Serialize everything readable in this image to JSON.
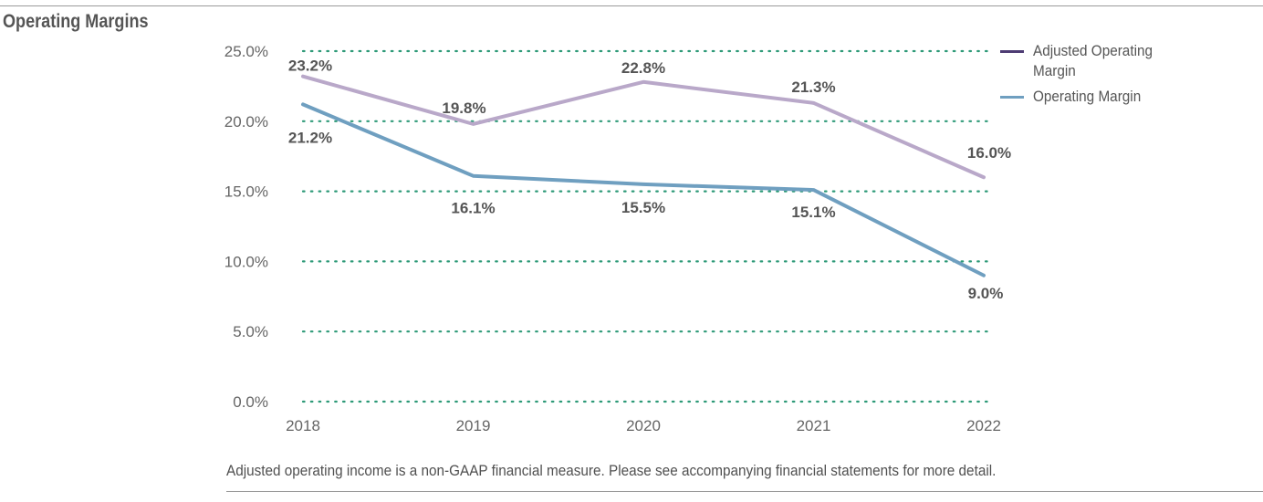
{
  "title": "Operating Margins",
  "footnote": "Adjusted operating income is a non-GAAP financial measure. Please see accompanying financial statements for more detail.",
  "colors": {
    "adjusted_line": "#b9a8c9",
    "adjusted_legend": "#4d3b73",
    "operating_line": "#6f9fc0",
    "grid": "#2e9a78",
    "label": "#555555",
    "axis_text": "#666666"
  },
  "chart_data": {
    "type": "line",
    "title": "Operating Margins",
    "categories": [
      "2018",
      "2019",
      "2020",
      "2021",
      "2022"
    ],
    "series": [
      {
        "name": "Adjusted Operating Margin",
        "values": [
          23.2,
          19.8,
          22.8,
          21.3,
          16.0
        ],
        "labels": [
          "23.2%",
          "19.8%",
          "22.8%",
          "21.3%",
          "16.0%"
        ]
      },
      {
        "name": "Operating Margin",
        "values": [
          21.2,
          16.1,
          15.5,
          15.1,
          9.0
        ],
        "labels": [
          "21.2%",
          "16.1%",
          "15.5%",
          "15.1%",
          "9.0%"
        ]
      }
    ],
    "yticks": [
      "0.0%",
      "5.0%",
      "10.0%",
      "15.0%",
      "20.0%",
      "25.0%"
    ],
    "ylim": [
      0,
      25
    ],
    "grid": true,
    "grid_style": "dotted",
    "legend_position": "top-right"
  }
}
